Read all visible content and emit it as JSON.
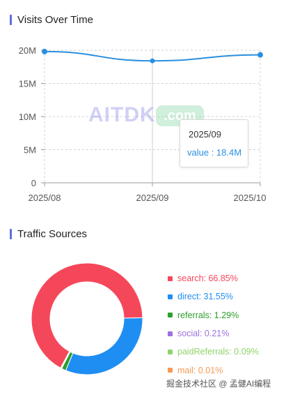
{
  "sections": {
    "visits_title": "Visits Over Time",
    "traffic_title": "Traffic Sources"
  },
  "watermark": {
    "left": "AITDK",
    "right": ".com"
  },
  "tooltip": {
    "title": "2025/09",
    "value_label": "value : 18.4M"
  },
  "footer": "掘金技术社区 @ 孟健AI编程",
  "colors": {
    "accent": "#5b6ee0",
    "line": "#2a8fe0",
    "grid": "#d0d0d0"
  },
  "chart_data": [
    {
      "type": "line",
      "title": "Visits Over Time",
      "x": [
        "2025/08",
        "2025/09",
        "2025/10"
      ],
      "series": [
        {
          "values": [
            19.8,
            18.4,
            19.3
          ]
        }
      ],
      "y_ticks": [
        "0",
        "5M",
        "10M",
        "15M",
        "20M"
      ],
      "ylim": [
        0,
        20
      ],
      "grid": true,
      "highlight_index": 1
    },
    {
      "type": "pie",
      "title": "Traffic Sources",
      "donut": true,
      "slices": [
        {
          "label": "search: 66.85%",
          "name": "search",
          "value": 66.85,
          "color": "#f5475a"
        },
        {
          "label": "direct: 31.55%",
          "name": "direct",
          "value": 31.55,
          "color": "#1f8ef2"
        },
        {
          "label": "referrals: 1.29%",
          "name": "referrals",
          "value": 1.29,
          "color": "#2e9e2e"
        },
        {
          "label": "social: 0.21%",
          "name": "social",
          "value": 0.21,
          "color": "#9e6fe0"
        },
        {
          "label": "paidReferrals: 0.09%",
          "name": "paidReferrals",
          "value": 0.09,
          "color": "#8fd46a"
        },
        {
          "label": "mail: 0.01%",
          "name": "mail",
          "value": 0.01,
          "color": "#f59a55"
        }
      ]
    }
  ]
}
